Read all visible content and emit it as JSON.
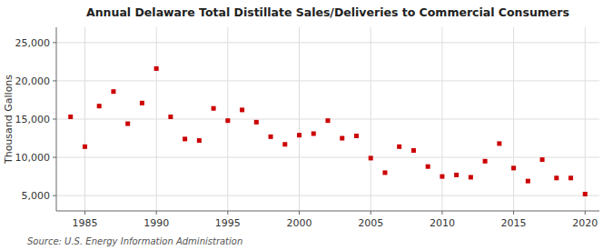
{
  "chart_data": {
    "type": "scatter",
    "title": "Annual Delaware Total Distillate Sales/Deliveries to Commercial Consumers",
    "ylabel": "Thousand Gallons",
    "annotations": [
      "Source: U.S. Energy Information Administration"
    ],
    "x": [
      1984,
      1985,
      1986,
      1987,
      1988,
      1989,
      1990,
      1991,
      1992,
      1993,
      1994,
      1995,
      1996,
      1997,
      1998,
      1999,
      2000,
      2001,
      2002,
      2003,
      2004,
      2005,
      2006,
      2007,
      2008,
      2009,
      2010,
      2011,
      2012,
      2013,
      2014,
      2015,
      2016,
      2017,
      2018,
      2019,
      2020
    ],
    "values": [
      15300,
      11400,
      16700,
      18600,
      14400,
      17100,
      21600,
      15300,
      12400,
      12200,
      16400,
      14800,
      16200,
      14600,
      12700,
      11700,
      12900,
      13100,
      14800,
      12500,
      12800,
      9900,
      8000,
      11400,
      10900,
      8800,
      7500,
      7700,
      7400,
      9500,
      11800,
      8600,
      6900,
      9700,
      7300,
      7300,
      5200
    ],
    "color": "#cc0000",
    "marker": "square",
    "xlim": [
      1983,
      2021
    ],
    "ylim": [
      3000,
      27000
    ],
    "xticks": [
      1985,
      1990,
      1995,
      2000,
      2005,
      2010,
      2015,
      2020
    ],
    "yticks": [
      {
        "value": 5000,
        "label": "5,000"
      },
      {
        "value": 10000,
        "label": "10,000"
      },
      {
        "value": 15000,
        "label": "15,000"
      },
      {
        "value": 20000,
        "label": "20,000"
      },
      {
        "value": 25000,
        "label": "25,000"
      }
    ],
    "grid": true
  }
}
